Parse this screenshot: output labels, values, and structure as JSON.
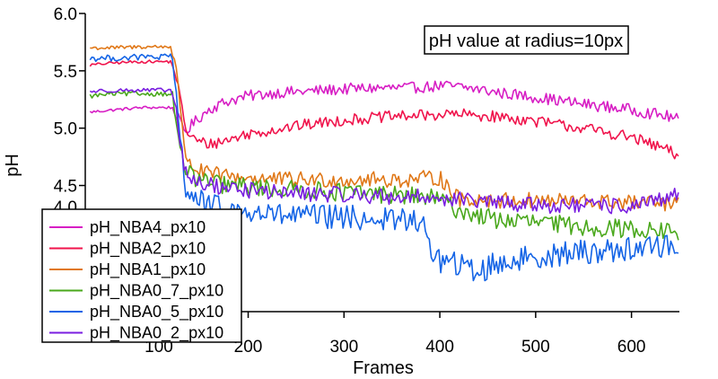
{
  "chart_data": {
    "type": "line",
    "title": "pH value at radius=10px",
    "xlabel": "Frames",
    "ylabel": "pH",
    "xlim": [
      30,
      650
    ],
    "ylim": [
      3.4,
      6.0
    ],
    "x_ticks": [
      200,
      300,
      400,
      500,
      600
    ],
    "x_tick_labels": [
      "200",
      "300",
      "400",
      "500",
      "600"
    ],
    "y_ticks": [
      4.5,
      5.0,
      5.5,
      6.0
    ],
    "y_tick_labels": [
      "4.5",
      "5.0",
      "5.5",
      "6.0"
    ],
    "partially_hidden_labels": {
      "y_tick_4_0": "4.0",
      "x_tick_100": "100"
    },
    "legend_position": "bottom-left",
    "x": [
      35,
      60,
      90,
      120,
      125,
      130,
      135,
      140,
      150,
      160,
      180,
      200,
      230,
      260,
      300,
      330,
      350,
      370,
      380,
      390,
      400,
      420,
      440,
      460,
      500,
      550,
      600,
      640,
      650
    ],
    "series": [
      {
        "name": "pH_NBA4_px10",
        "color": "#d71ec4",
        "noise": 0.05,
        "values": [
          5.14,
          5.16,
          5.18,
          5.18,
          5.12,
          5.02,
          4.97,
          5.02,
          5.1,
          5.17,
          5.24,
          5.28,
          5.31,
          5.32,
          5.34,
          5.35,
          5.35,
          5.35,
          5.36,
          5.36,
          5.37,
          5.36,
          5.34,
          5.31,
          5.27,
          5.21,
          5.16,
          5.1,
          5.07
        ]
      },
      {
        "name": "pH_NBA2_px10",
        "color": "#f0144c",
        "noise": 0.05,
        "values": [
          5.55,
          5.57,
          5.58,
          5.58,
          5.45,
          5.2,
          5.0,
          4.92,
          4.88,
          4.86,
          4.9,
          4.95,
          4.99,
          5.03,
          5.07,
          5.09,
          5.1,
          5.11,
          5.11,
          5.11,
          5.12,
          5.12,
          5.11,
          5.1,
          5.06,
          5.0,
          4.92,
          4.8,
          4.72
        ]
      },
      {
        "name": "pH_NBA1_px10",
        "color": "#e07818",
        "noise": 0.07,
        "values": [
          5.7,
          5.7,
          5.71,
          5.71,
          5.55,
          5.05,
          4.78,
          4.68,
          4.62,
          4.6,
          4.58,
          4.57,
          4.55,
          4.55,
          4.55,
          4.55,
          4.55,
          4.55,
          4.56,
          4.56,
          4.57,
          4.38,
          4.38,
          4.37,
          4.37,
          4.36,
          4.35,
          4.34,
          4.33
        ]
      },
      {
        "name": "pH_NBA0_7_px10",
        "color": "#4aa81c",
        "noise": 0.08,
        "values": [
          5.28,
          5.3,
          5.3,
          5.3,
          5.05,
          4.75,
          4.65,
          4.58,
          4.55,
          4.52,
          4.5,
          4.49,
          4.47,
          4.46,
          4.44,
          4.43,
          4.42,
          4.41,
          4.4,
          4.39,
          4.38,
          4.28,
          4.24,
          4.2,
          4.18,
          4.14,
          4.12,
          4.1,
          4.08
        ]
      },
      {
        "name": "pH_NBA0_5_px10",
        "color": "#1464e6",
        "noise": 0.11,
        "values": [
          5.61,
          5.61,
          5.62,
          5.62,
          5.3,
          4.8,
          4.5,
          4.42,
          4.36,
          4.32,
          4.28,
          4.26,
          4.24,
          4.23,
          4.22,
          4.21,
          4.2,
          4.2,
          4.19,
          3.95,
          3.85,
          3.8,
          3.75,
          3.82,
          3.88,
          3.92,
          3.95,
          3.98,
          3.95
        ]
      },
      {
        "name": "pH_NBA0_2_px10",
        "color": "#7a1ee0",
        "noise": 0.07,
        "values": [
          5.32,
          5.33,
          5.33,
          5.33,
          5.15,
          4.8,
          4.6,
          4.55,
          4.52,
          4.5,
          4.48,
          4.46,
          4.44,
          4.43,
          4.42,
          4.41,
          4.4,
          4.4,
          4.4,
          4.4,
          4.39,
          4.38,
          4.36,
          4.35,
          4.33,
          4.32,
          4.32,
          4.38,
          4.45
        ]
      }
    ]
  }
}
